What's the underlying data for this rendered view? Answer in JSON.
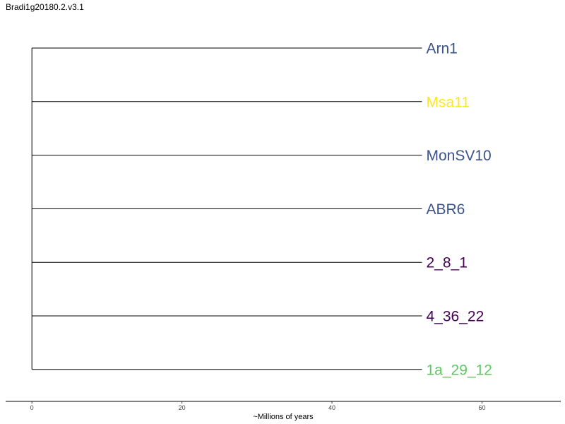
{
  "chart_data": {
    "type": "tree",
    "title": "Bradi1g20180.2.v3.1",
    "xlabel": "~Millions of years",
    "xlim": [
      -3.5,
      70.5
    ],
    "x_ticks": [
      0,
      20,
      40,
      60
    ],
    "tree_depth": 52,
    "tips": [
      {
        "label": "Arn1",
        "branch_length": 52,
        "color": "#3b528b"
      },
      {
        "label": "Msa11",
        "branch_length": 52,
        "color": "#fde725"
      },
      {
        "label": "MonSV10",
        "branch_length": 52,
        "color": "#3b528b"
      },
      {
        "label": "ABR6",
        "branch_length": 52,
        "color": "#3b528b"
      },
      {
        "label": "2_8_1",
        "branch_length": 52,
        "color": "#440154"
      },
      {
        "label": "4_36_22",
        "branch_length": 52,
        "color": "#440154"
      },
      {
        "label": "1a_29_12",
        "branch_length": 52,
        "color": "#5ec962"
      }
    ]
  }
}
